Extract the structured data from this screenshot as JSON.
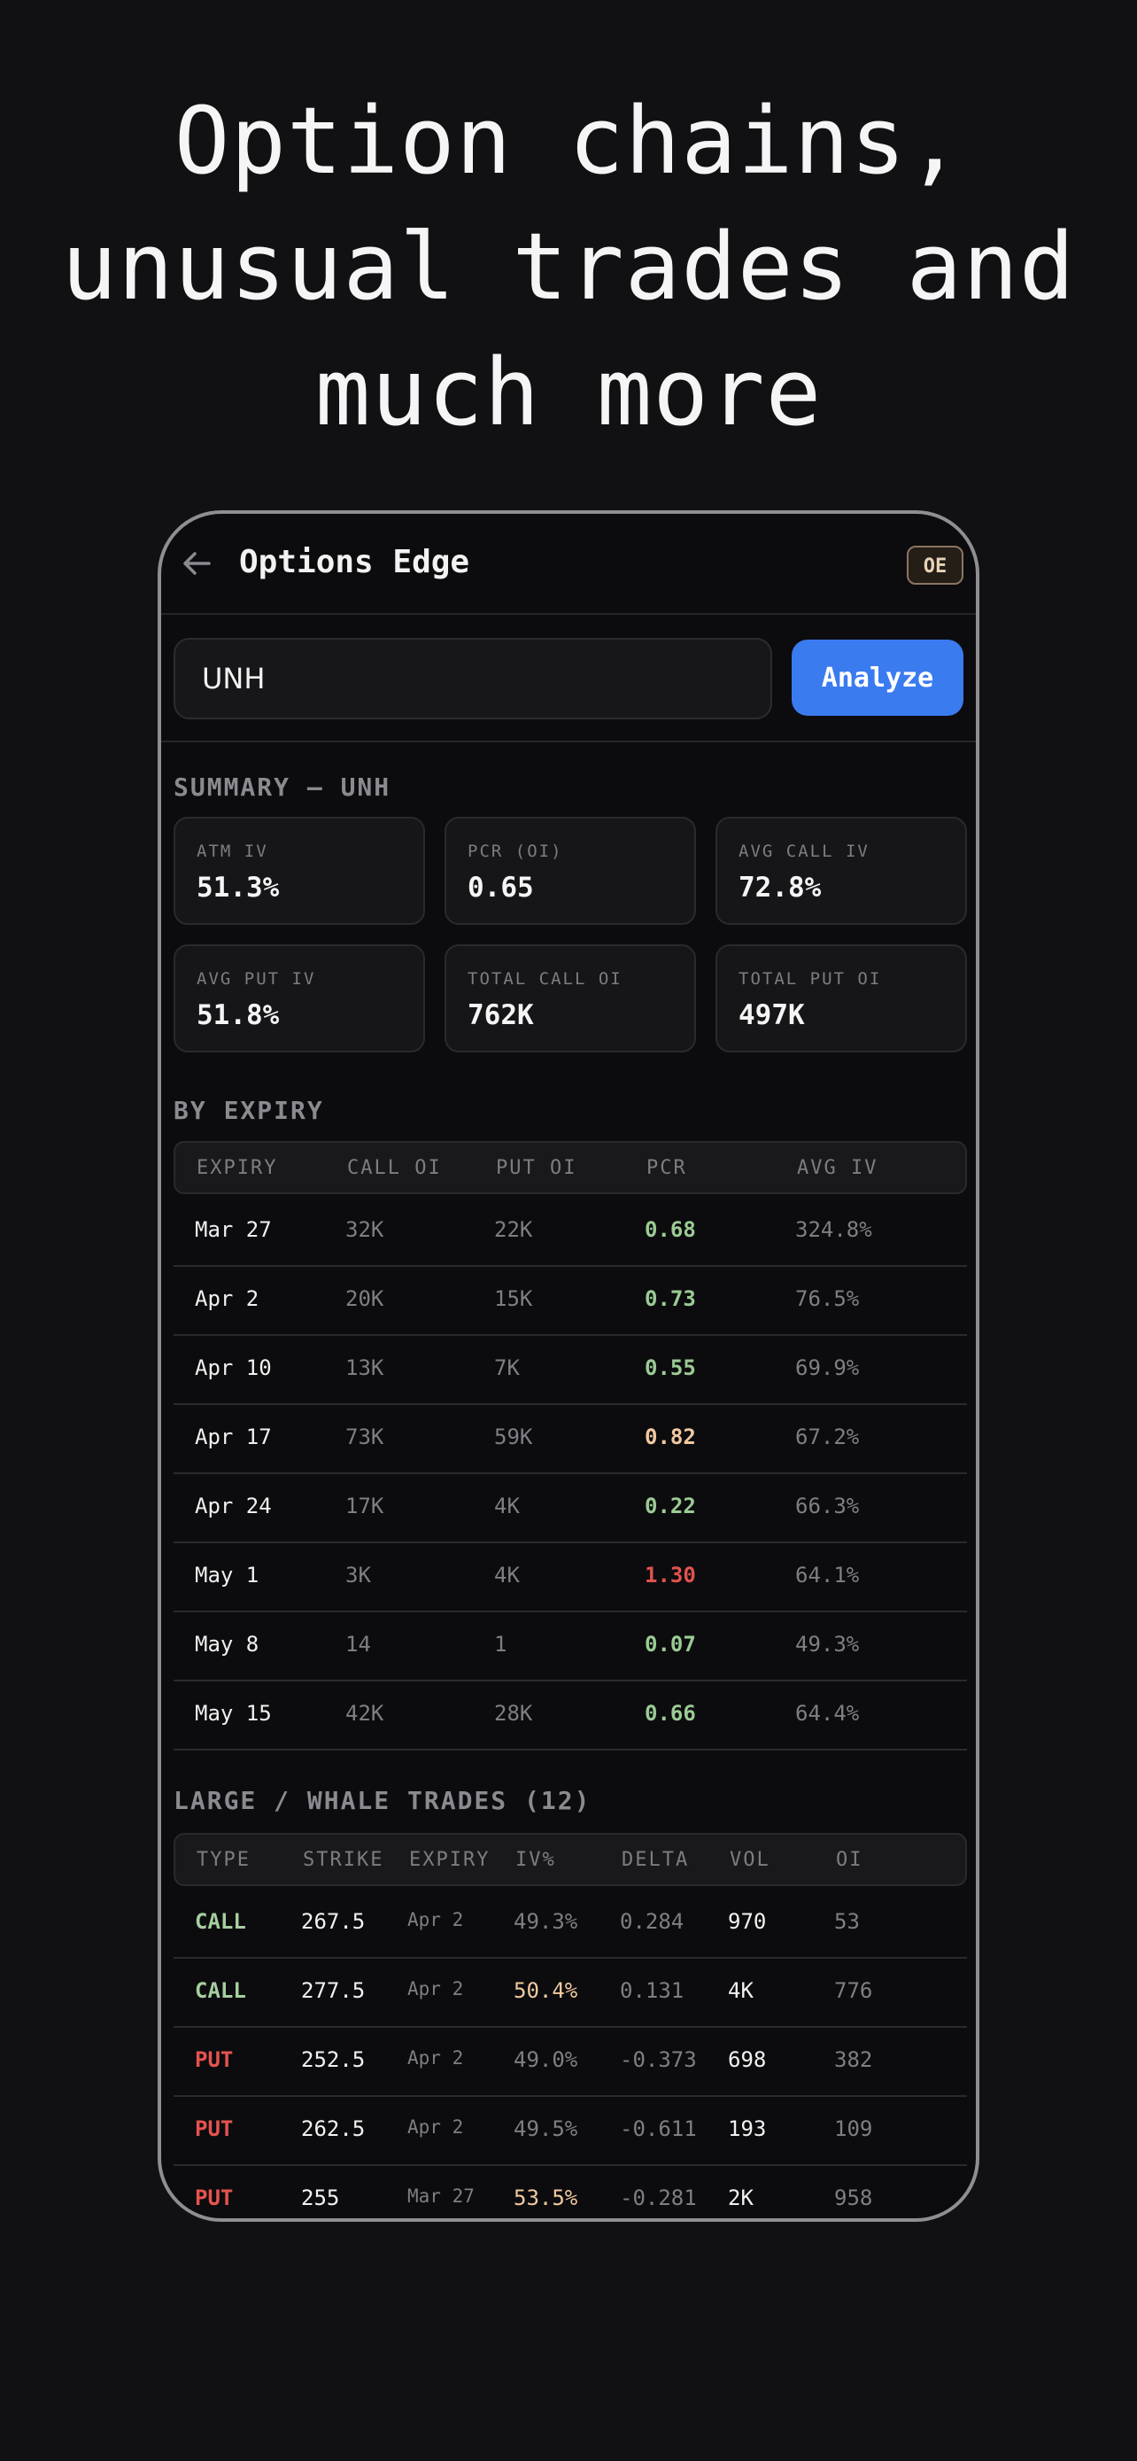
{
  "hero": {
    "line1": "Option chains,",
    "line2": "unusual trades and",
    "line3": "much more"
  },
  "appbar": {
    "back_icon": "arrow-left-icon",
    "title": "Options Edge",
    "badge": "OE"
  },
  "search": {
    "value": "UNH",
    "button_label": "Analyze"
  },
  "summary": {
    "title": "SUMMARY — UNH",
    "cards": [
      {
        "label": "ATM IV",
        "value": "51.3%"
      },
      {
        "label": "PCR (OI)",
        "value": "0.65"
      },
      {
        "label": "AVG CALL IV",
        "value": "72.8%"
      },
      {
        "label": "AVG PUT IV",
        "value": "51.8%"
      },
      {
        "label": "TOTAL CALL OI",
        "value": "762K"
      },
      {
        "label": "TOTAL PUT OI",
        "value": "497K"
      }
    ]
  },
  "expiry": {
    "title": "BY EXPIRY",
    "headers": [
      "EXPIRY",
      "CALL OI",
      "PUT OI",
      "PCR",
      "AVG IV"
    ],
    "rows": [
      {
        "expiry": "Mar 27",
        "call_oi": "32K",
        "put_oi": "22K",
        "pcr": "0.68",
        "pcr_color": "green",
        "avg_iv": "324.8%"
      },
      {
        "expiry": "Apr 2",
        "call_oi": "20K",
        "put_oi": "15K",
        "pcr": "0.73",
        "pcr_color": "green",
        "avg_iv": "76.5%"
      },
      {
        "expiry": "Apr 10",
        "call_oi": "13K",
        "put_oi": "7K",
        "pcr": "0.55",
        "pcr_color": "green",
        "avg_iv": "69.9%"
      },
      {
        "expiry": "Apr 17",
        "call_oi": "73K",
        "put_oi": "59K",
        "pcr": "0.82",
        "pcr_color": "orange",
        "avg_iv": "67.2%"
      },
      {
        "expiry": "Apr 24",
        "call_oi": "17K",
        "put_oi": "4K",
        "pcr": "0.22",
        "pcr_color": "green",
        "avg_iv": "66.3%"
      },
      {
        "expiry": "May 1",
        "call_oi": "3K",
        "put_oi": "4K",
        "pcr": "1.30",
        "pcr_color": "red",
        "avg_iv": "64.1%"
      },
      {
        "expiry": "May 8",
        "call_oi": "14",
        "put_oi": "1",
        "pcr": "0.07",
        "pcr_color": "green",
        "avg_iv": "49.3%"
      },
      {
        "expiry": "May 15",
        "call_oi": "42K",
        "put_oi": "28K",
        "pcr": "0.66",
        "pcr_color": "green",
        "avg_iv": "64.4%"
      }
    ]
  },
  "trades": {
    "title": "LARGE / WHALE TRADES (12)",
    "headers": [
      "TYPE",
      "STRIKE",
      "EXPIRY",
      "IV%",
      "DELTA",
      "VOL",
      "OI"
    ],
    "rows": [
      {
        "type": "CALL",
        "strike": "267.5",
        "expiry": "Apr 2",
        "iv": "49.3%",
        "iv_high": false,
        "delta": "0.284",
        "vol": "970",
        "oi": "53"
      },
      {
        "type": "CALL",
        "strike": "277.5",
        "expiry": "Apr 2",
        "iv": "50.4%",
        "iv_high": true,
        "delta": "0.131",
        "vol": "4K",
        "oi": "776"
      },
      {
        "type": "PUT",
        "strike": "252.5",
        "expiry": "Apr 2",
        "iv": "49.0%",
        "iv_high": false,
        "delta": "-0.373",
        "vol": "698",
        "oi": "382"
      },
      {
        "type": "PUT",
        "strike": "262.5",
        "expiry": "Apr 2",
        "iv": "49.5%",
        "iv_high": false,
        "delta": "-0.611",
        "vol": "193",
        "oi": "109"
      },
      {
        "type": "PUT",
        "strike": "255",
        "expiry": "Mar 27",
        "iv": "53.5%",
        "iv_high": true,
        "delta": "-0.281",
        "vol": "2K",
        "oi": "958"
      }
    ]
  }
}
